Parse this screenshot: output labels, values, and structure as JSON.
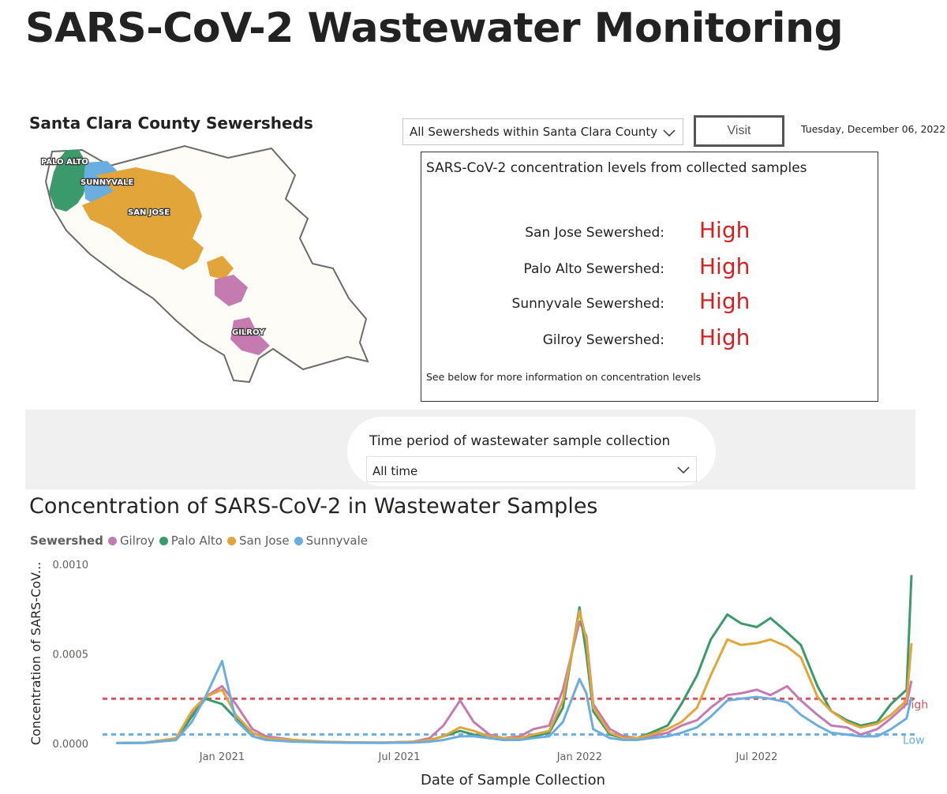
{
  "page": {
    "title": "SARS-CoV-2 Wastewater Monitoring"
  },
  "map": {
    "title": "Santa Clara County Sewersheds",
    "labels": {
      "palo_alto": "PALO ALTO",
      "sunnyvale": "SUNNYVALE",
      "san_jose": "SAN JOSE",
      "gilroy": "GILROY"
    },
    "colors": {
      "palo_alto": "#3a9a6b",
      "sunnyvale": "#6aaee0",
      "san_jose": "#e2a53a",
      "gilroy": "#c57bb0",
      "county_fill": "#fdfcf7",
      "county_stroke": "#6b6b6b"
    }
  },
  "controls": {
    "sewershed_select": {
      "value": "All Sewersheds within Santa Clara County",
      "icon": "chevron-down-icon"
    },
    "visit_label": "Visit",
    "date": "Tuesday, December 06, 2022"
  },
  "levels": {
    "title": "SARS-CoV-2 concentration levels from collected samples",
    "rows": [
      {
        "label": "San Jose Sewershed:",
        "value": "High"
      },
      {
        "label": "Palo Alto Sewershed:",
        "value": "High"
      },
      {
        "label": "Sunnyvale Sewershed:",
        "value": "High"
      },
      {
        "label": "Gilroy Sewershed:",
        "value": "High"
      }
    ],
    "note": "See below for more information on concentration levels",
    "value_color": "#d42020"
  },
  "filter": {
    "label": "Time period of wastewater sample collection",
    "value": "All time",
    "icon": "chevron-down-icon"
  },
  "chart": {
    "title": "Concentration of SARS-CoV-2 in Wastewater Samples",
    "legend_title": "Sewershed"
  },
  "chart_data": {
    "type": "line",
    "title": "Concentration of SARS-CoV-2 in Wastewater Samples",
    "xlabel": "Date of Sample Collection",
    "ylabel": "Concentration of SARS-CoV...",
    "x_ticks": [
      "Jan 2021",
      "Jul 2021",
      "Jan 2022",
      "Jul 2022"
    ],
    "y_ticks": [
      "0.0000",
      "0.0005",
      "0.0010"
    ],
    "ylim": [
      0,
      0.001
    ],
    "xlim": [
      "2020-09",
      "2022-12"
    ],
    "grid": false,
    "legend_position": "top-left",
    "x": [
      "2020-09-15",
      "2020-10-15",
      "2020-11-15",
      "2020-12-01",
      "2020-12-15",
      "2021-01-01",
      "2021-01-15",
      "2021-02-01",
      "2021-02-15",
      "2021-03-15",
      "2021-04-15",
      "2021-05-15",
      "2021-06-15",
      "2021-07-15",
      "2021-08-01",
      "2021-08-15",
      "2021-09-01",
      "2021-09-15",
      "2021-10-01",
      "2021-10-15",
      "2021-11-01",
      "2021-11-15",
      "2021-12-01",
      "2021-12-15",
      "2022-01-01",
      "2022-01-08",
      "2022-01-15",
      "2022-02-01",
      "2022-02-15",
      "2022-03-01",
      "2022-03-15",
      "2022-04-01",
      "2022-04-15",
      "2022-05-01",
      "2022-05-15",
      "2022-06-01",
      "2022-06-15",
      "2022-07-01",
      "2022-07-15",
      "2022-08-01",
      "2022-08-15",
      "2022-09-01",
      "2022-09-15",
      "2022-10-01",
      "2022-10-15",
      "2022-11-01",
      "2022-11-15",
      "2022-12-01",
      "2022-12-06"
    ],
    "series": [
      {
        "name": "Gilroy",
        "color": "#c57bb0",
        "values": [
          3e-06,
          5e-06,
          2e-05,
          0.00016,
          0.00026,
          0.00032,
          0.00022,
          8e-05,
          4e-05,
          2e-05,
          1e-05,
          6e-06,
          5e-06,
          1e-05,
          3e-05,
          0.0001,
          0.00024,
          0.00012,
          5e-05,
          3e-05,
          4e-05,
          8e-05,
          0.0001,
          0.0003,
          0.00068,
          0.0006,
          0.00022,
          8e-05,
          4e-05,
          3e-05,
          4e-05,
          6e-05,
          0.0001,
          0.00013,
          0.0002,
          0.00027,
          0.00028,
          0.0003,
          0.00027,
          0.00032,
          0.00024,
          0.00016,
          0.0001,
          9e-05,
          5e-05,
          8e-05,
          0.00014,
          0.00022,
          0.00035
        ]
      },
      {
        "name": "Palo Alto",
        "color": "#3a9a6b",
        "values": [
          2e-06,
          4e-06,
          2e-05,
          0.00015,
          0.00025,
          0.00022,
          0.00014,
          6e-05,
          3e-05,
          1.5e-05,
          8e-06,
          5e-06,
          4e-06,
          8e-06,
          2e-05,
          4e-05,
          7e-05,
          5e-05,
          3e-05,
          2e-05,
          3e-05,
          4e-05,
          6e-05,
          0.0002,
          0.00076,
          0.0005,
          0.00018,
          5e-05,
          3e-05,
          3e-05,
          6e-05,
          0.0001,
          0.00022,
          0.00038,
          0.00058,
          0.00072,
          0.00067,
          0.00065,
          0.0007,
          0.00062,
          0.00055,
          0.00032,
          0.00018,
          0.00013,
          0.0001,
          0.00012,
          0.00022,
          0.0003,
          0.00094
        ]
      },
      {
        "name": "San Jose",
        "color": "#e2a53a",
        "values": [
          2e-06,
          5e-06,
          3e-05,
          0.00018,
          0.00026,
          0.0003,
          0.00016,
          6e-05,
          3e-05,
          2e-05,
          1e-05,
          6e-06,
          5e-06,
          1e-05,
          2e-05,
          4e-05,
          9e-05,
          7e-05,
          4e-05,
          3e-05,
          3e-05,
          5e-05,
          7e-05,
          0.00024,
          0.00074,
          0.00058,
          0.0002,
          6e-05,
          3e-05,
          3e-05,
          5e-05,
          8e-05,
          0.00012,
          0.0002,
          0.00038,
          0.00058,
          0.00055,
          0.00056,
          0.00058,
          0.00054,
          0.00048,
          0.00026,
          0.00018,
          0.00012,
          9e-05,
          0.00011,
          0.00016,
          0.00024,
          0.00056
        ]
      },
      {
        "name": "Sunnyvale",
        "color": "#6aaee0",
        "values": [
          2e-06,
          4e-06,
          2e-05,
          0.00012,
          0.00026,
          0.00046,
          0.00013,
          4e-05,
          2e-05,
          1e-05,
          6e-06,
          4e-06,
          3e-06,
          5e-06,
          1e-05,
          2e-05,
          4e-05,
          4e-05,
          3e-05,
          2e-05,
          2e-05,
          3e-05,
          4e-05,
          0.00012,
          0.00036,
          0.00028,
          8e-05,
          3e-05,
          2e-05,
          2e-05,
          3e-05,
          4e-05,
          6e-05,
          9e-05,
          0.00015,
          0.00024,
          0.00025,
          0.00026,
          0.00025,
          0.00023,
          0.00016,
          0.0001,
          6e-05,
          5e-05,
          4e-05,
          4e-05,
          8e-05,
          0.00014,
          0.00026
        ]
      }
    ],
    "reference_lines": [
      {
        "label": "High",
        "y": 0.00025,
        "color": "#d9505e"
      },
      {
        "label": "Low",
        "y": 5e-05,
        "color": "#6aaee0"
      }
    ]
  }
}
